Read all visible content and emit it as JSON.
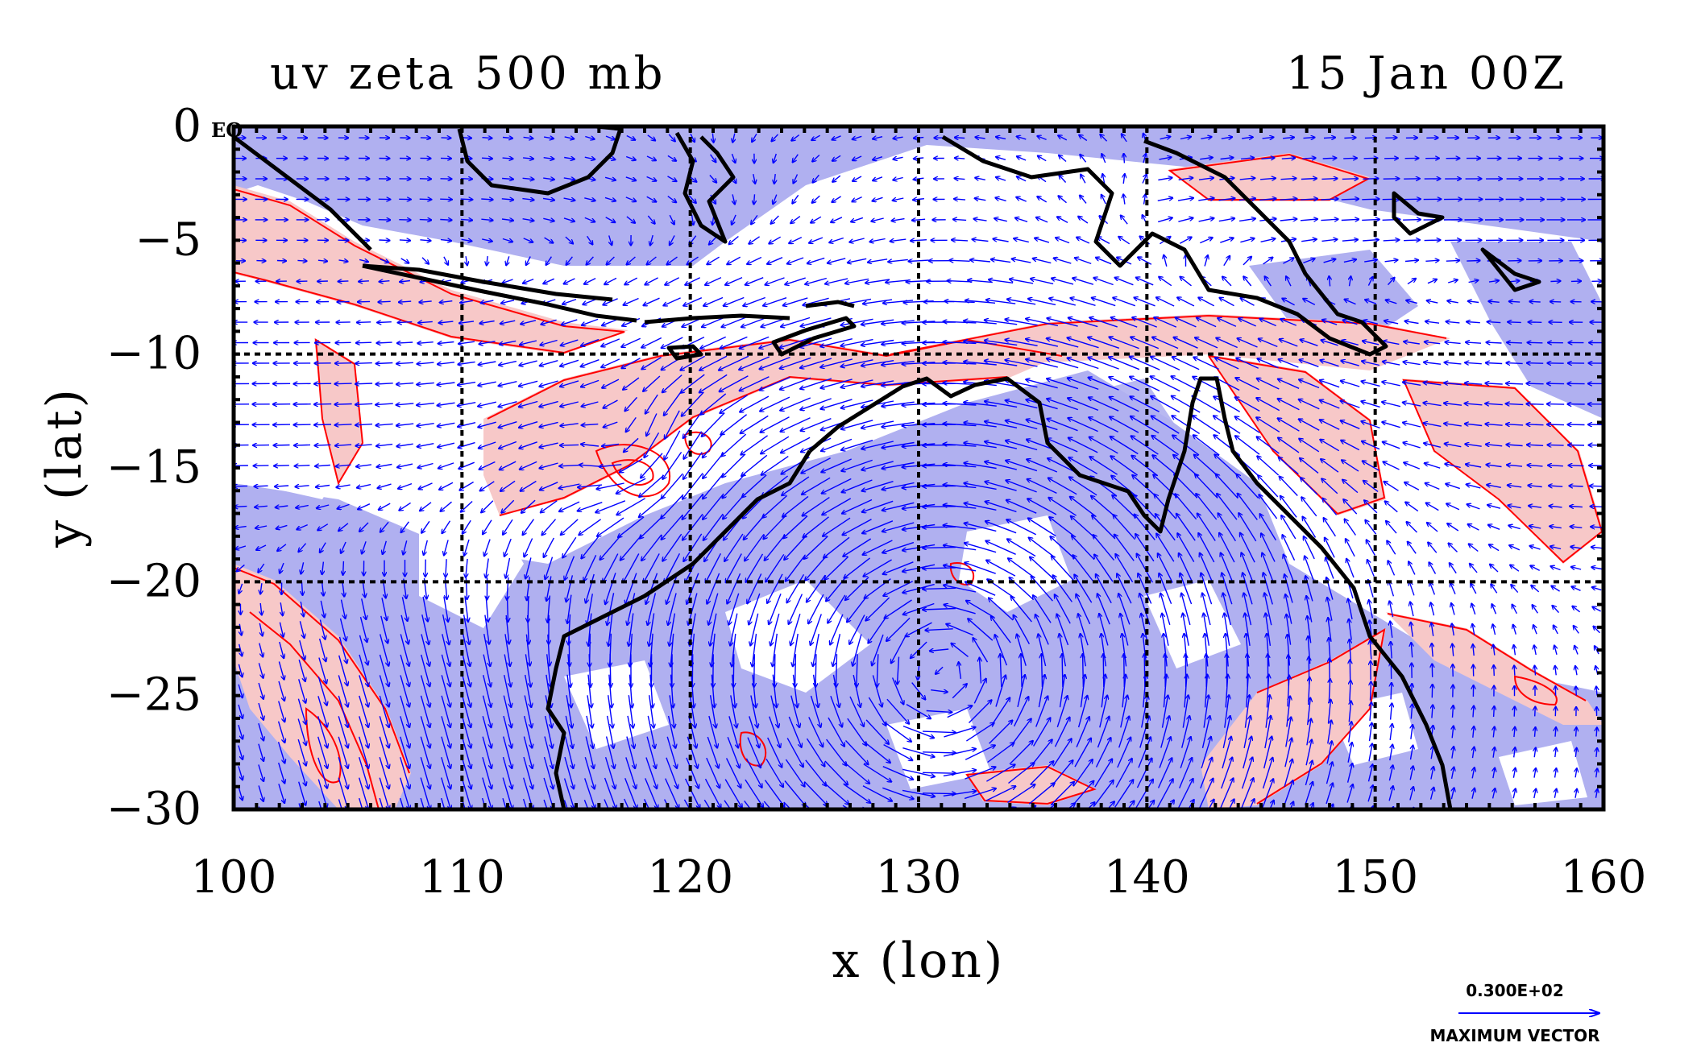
{
  "chart_data": {
    "type": "map",
    "title": "uv zeta 500 mb",
    "date": "15 Jan 00Z",
    "xlabel": "x (lon)",
    "ylabel": "y (lat)",
    "xlim": [
      100,
      160
    ],
    "ylim": [
      -30,
      0
    ],
    "x_ticks": [
      "100",
      "110",
      "120",
      "130",
      "140",
      "150",
      "160"
    ],
    "y_ticks": [
      "0",
      "−5",
      "−10",
      "−15",
      "−20",
      "−25",
      "−30"
    ],
    "corner_label": "EQ",
    "grid": true,
    "grid_lon": [
      110,
      120,
      130,
      140,
      150
    ],
    "grid_lat": [
      -10,
      -20
    ],
    "series": [
      {
        "name": "positive vorticity",
        "color": "#f7c8c8",
        "contour_color": "#ff0000"
      },
      {
        "name": "negative vorticity",
        "color": "#b0b0f0"
      },
      {
        "name": "wind vectors",
        "color": "#0000ff"
      },
      {
        "name": "coastline",
        "color": "#000000"
      }
    ],
    "vector_key": {
      "value": "0.300E+02",
      "label": "MAXIMUM VECTOR"
    }
  }
}
